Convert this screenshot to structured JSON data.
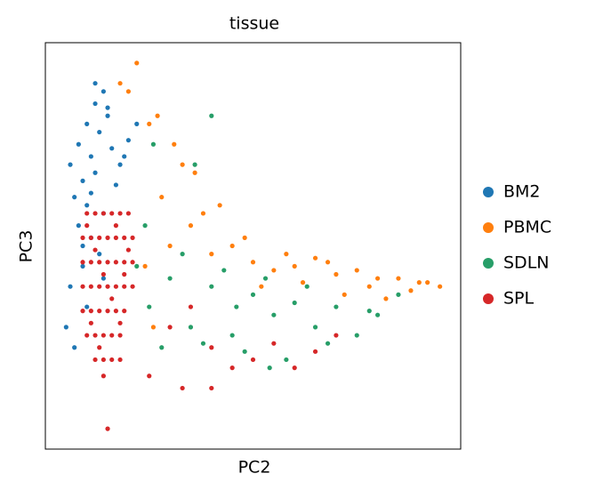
{
  "chart_data": {
    "type": "scatter",
    "title": "tissue",
    "x_label": "PC2",
    "y_label": "PC3",
    "xlim": [
      0,
      100
    ],
    "ylim": [
      0,
      100
    ],
    "grid": false,
    "legend": "right",
    "series": [
      {
        "name": "BM2",
        "color": "#1f77b4",
        "x": [
          6,
          8,
          10,
          12,
          14,
          7,
          9,
          11,
          13,
          15,
          10,
          12,
          16,
          18,
          8,
          11,
          14,
          9,
          13,
          20,
          6,
          5,
          17,
          22,
          12,
          10,
          7,
          15,
          19,
          11,
          9,
          14
        ],
        "values": [
          70,
          75,
          80,
          85,
          88,
          62,
          66,
          72,
          78,
          82,
          60,
          68,
          74,
          70,
          55,
          52,
          58,
          45,
          48,
          76,
          40,
          30,
          65,
          80,
          90,
          35,
          25,
          84,
          72,
          63,
          50,
          42
        ]
      },
      {
        "name": "PBMC",
        "color": "#ff7f0e",
        "x": [
          30,
          40,
          50,
          60,
          70,
          80,
          90,
          95,
          35,
          45,
          55,
          65,
          75,
          85,
          28,
          38,
          48,
          58,
          68,
          78,
          88,
          25,
          33,
          20,
          22,
          27,
          31,
          36,
          42,
          18,
          52,
          62,
          72,
          82,
          92,
          24,
          26
        ],
        "values": [
          50,
          48,
          46,
          45,
          43,
          42,
          41,
          40,
          55,
          50,
          44,
          47,
          44,
          42,
          62,
          58,
          52,
          48,
          46,
          40,
          39,
          80,
          70,
          88,
          95,
          82,
          75,
          68,
          60,
          90,
          40,
          41,
          38,
          37,
          41,
          45,
          30
        ]
      },
      {
        "name": "SDLN",
        "color": "#279e68",
        "x": [
          22,
          30,
          40,
          50,
          60,
          70,
          80,
          85,
          25,
          35,
          45,
          55,
          65,
          75,
          28,
          38,
          48,
          58,
          68,
          78,
          33,
          43,
          53,
          63,
          26,
          36,
          24,
          54,
          46,
          40
        ],
        "values": [
          45,
          42,
          40,
          38,
          36,
          35,
          33,
          38,
          35,
          30,
          28,
          33,
          30,
          28,
          25,
          26,
          24,
          22,
          26,
          34,
          48,
          44,
          42,
          40,
          75,
          70,
          55,
          20,
          35,
          82
        ]
      },
      {
        "name": "SPL",
        "color": "#d62728",
        "x": [
          10,
          12,
          14,
          16,
          18,
          20,
          9,
          11,
          13,
          15,
          17,
          19,
          21,
          9,
          11,
          13,
          15,
          17,
          19,
          21,
          9,
          11,
          13,
          15,
          17,
          19,
          21,
          9,
          11,
          13,
          15,
          17,
          19,
          10,
          12,
          14,
          16,
          18,
          12,
          14,
          16,
          18,
          14,
          10,
          12,
          14,
          16,
          18,
          20,
          13,
          11,
          17,
          19,
          30,
          40,
          50,
          60,
          70,
          35,
          45,
          55,
          65,
          25,
          33,
          15,
          40
        ],
        "values": [
          58,
          58,
          58,
          58,
          58,
          58,
          52,
          52,
          52,
          52,
          52,
          52,
          52,
          46,
          46,
          46,
          46,
          46,
          46,
          46,
          40,
          40,
          40,
          40,
          40,
          40,
          40,
          34,
          34,
          34,
          34,
          34,
          34,
          28,
          28,
          28,
          28,
          28,
          22,
          22,
          22,
          22,
          18,
          55,
          49,
          43,
          37,
          31,
          49,
          25,
          31,
          55,
          43,
          30,
          25,
          22,
          20,
          28,
          35,
          20,
          26,
          24,
          18,
          15,
          5,
          15
        ]
      }
    ]
  }
}
